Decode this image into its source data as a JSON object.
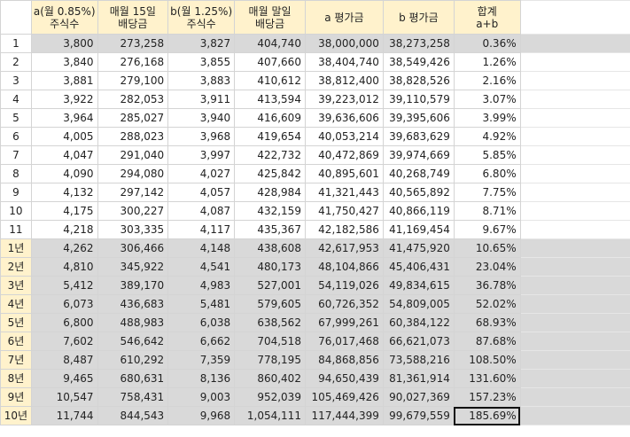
{
  "headers": [
    "",
    "a(월 0.85%)\n주식수",
    "매월 15일\n배당금",
    "b(월 1.25%)\n주식수",
    "매월 말일\n배당금",
    "a 평가금",
    "b 평가금",
    "합계\na+b"
  ],
  "rows": [
    [
      "1",
      "3,800",
      "273,258",
      "3,827",
      "404,740",
      "38,000,000",
      "38,273,258",
      "0.36%"
    ],
    [
      "2",
      "3,840",
      "276,168",
      "3,855",
      "407,660",
      "38,404,740",
      "38,549,426",
      "1.26%"
    ],
    [
      "3",
      "3,881",
      "279,100",
      "3,883",
      "410,612",
      "38,812,400",
      "38,828,526",
      "2.16%"
    ],
    [
      "4",
      "3,922",
      "282,053",
      "3,911",
      "413,594",
      "39,223,012",
      "39,110,579",
      "3.07%"
    ],
    [
      "5",
      "3,964",
      "285,027",
      "3,940",
      "416,609",
      "39,636,606",
      "39,395,606",
      "3.99%"
    ],
    [
      "6",
      "4,005",
      "288,023",
      "3,968",
      "419,654",
      "40,053,214",
      "39,683,629",
      "4.92%"
    ],
    [
      "7",
      "4,047",
      "291,040",
      "3,997",
      "422,732",
      "40,472,869",
      "39,974,669",
      "5.85%"
    ],
    [
      "8",
      "4,090",
      "294,080",
      "4,027",
      "425,842",
      "40,895,601",
      "40,268,749",
      "6.80%"
    ],
    [
      "9",
      "4,132",
      "297,142",
      "4,057",
      "428,984",
      "41,321,443",
      "40,565,892",
      "7.75%"
    ],
    [
      "10",
      "4,175",
      "300,227",
      "4,087",
      "432,159",
      "41,750,427",
      "40,866,119",
      "8.71%"
    ],
    [
      "11",
      "4,218",
      "303,335",
      "4,117",
      "435,367",
      "42,182,586",
      "41,169,454",
      "9.67%"
    ],
    [
      "1년",
      "4,262",
      "306,466",
      "4,148",
      "438,608",
      "42,617,953",
      "41,475,920",
      "10.65%"
    ],
    [
      "2년",
      "4,810",
      "345,922",
      "4,541",
      "480,173",
      "48,104,866",
      "45,406,431",
      "23.04%"
    ],
    [
      "3년",
      "5,412",
      "389,170",
      "4,983",
      "527,001",
      "54,119,026",
      "49,834,615",
      "36.78%"
    ],
    [
      "4년",
      "6,073",
      "436,683",
      "5,481",
      "579,605",
      "60,726,352",
      "54,809,005",
      "52.02%"
    ],
    [
      "5년",
      "6,800",
      "488,983",
      "6,038",
      "638,562",
      "67,999,261",
      "60,384,122",
      "68.93%"
    ],
    [
      "6년",
      "7,602",
      "546,642",
      "6,662",
      "704,518",
      "76,017,468",
      "66,621,073",
      "87.68%"
    ],
    [
      "7년",
      "8,487",
      "610,292",
      "7,359",
      "778,195",
      "84,868,856",
      "73,588,216",
      "108.50%"
    ],
    [
      "8년",
      "9,465",
      "680,631",
      "8,136",
      "860,402",
      "94,650,439",
      "81,361,914",
      "131.60%"
    ],
    [
      "9년",
      "10,547",
      "758,431",
      "9,003",
      "952,039",
      "105,469,426",
      "90,027,369",
      "157.23%"
    ],
    [
      "10년",
      "11,744",
      "844,543",
      "9,968",
      "1,054,111",
      "117,444,399",
      "99,679,559",
      "185.69%"
    ]
  ]
}
